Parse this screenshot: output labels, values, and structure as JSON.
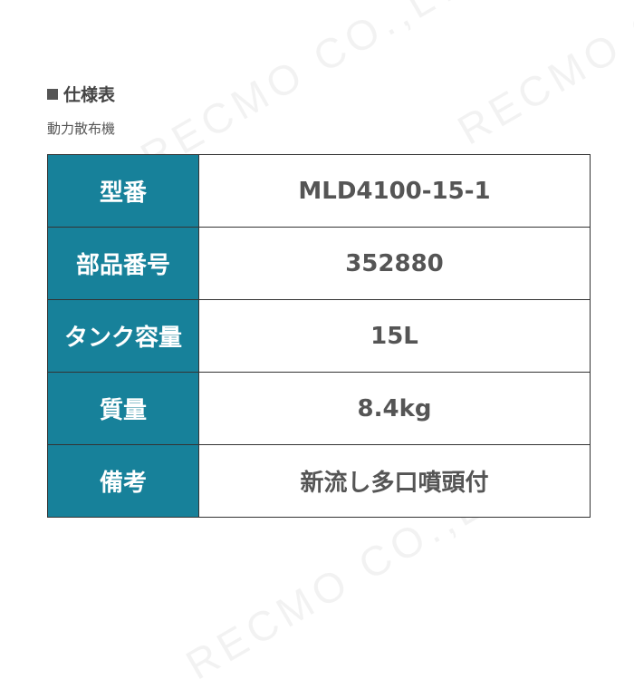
{
  "watermark": "RECMO CO.,LTD",
  "header": {
    "title": "仕様表",
    "subtitle": "動力散布機"
  },
  "colors": {
    "label_bg": "#17819a",
    "value_text": "#555555"
  },
  "spec_rows": [
    {
      "label": "型番",
      "value": "MLD4100-15-1"
    },
    {
      "label": "部品番号",
      "value": "352880"
    },
    {
      "label": "タンク容量",
      "value": "15L"
    },
    {
      "label": "質量",
      "value": "8.4kg"
    },
    {
      "label": "備考",
      "value": "新流し多口噴頭付"
    }
  ]
}
